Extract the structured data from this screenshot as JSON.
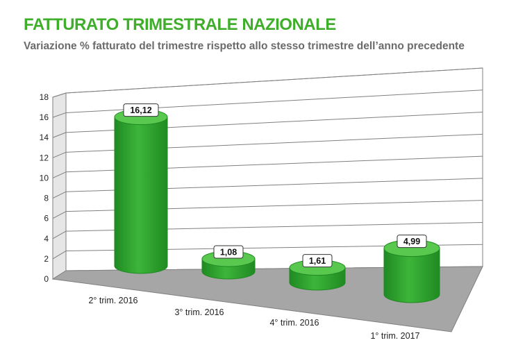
{
  "page": {
    "title": "FATTURATO TRIMESTRALE NAZIONALE",
    "subtitle": "Variazione % fatturato del trimestre rispetto allo stesso trimestre dell’anno precedente"
  },
  "colors": {
    "title": "#3fae2a",
    "subtitle": "#6b6b6b",
    "bar_fill": "#3db53a",
    "bar_dark": "#1f8a22",
    "bar_top": "#58c94e",
    "wall": "#ffffff",
    "floor": "#a6a6a6",
    "grid": "#7f7f7f"
  },
  "chart_data": {
    "type": "bar",
    "style": "3d-cylinder",
    "title": "FATTURATO TRIMESTRALE NAZIONALE",
    "subtitle": "Variazione % fatturato del trimestre rispetto allo stesso trimestre dell’anno precedente",
    "categories": [
      "2° trim. 2016",
      "3° trim. 2016",
      "4° trim. 2016",
      "1° trim. 2017"
    ],
    "values": [
      16.12,
      1.08,
      1.61,
      4.99
    ],
    "value_labels": [
      "16,12",
      "1,08",
      "1,61",
      "4,99"
    ],
    "yticks": [
      "0",
      "2",
      "4",
      "6",
      "8",
      "10",
      "12",
      "14",
      "16",
      "18"
    ],
    "ylim": [
      0,
      18
    ],
    "xlabel": "",
    "ylabel": "",
    "grid": true,
    "legend": "none"
  }
}
